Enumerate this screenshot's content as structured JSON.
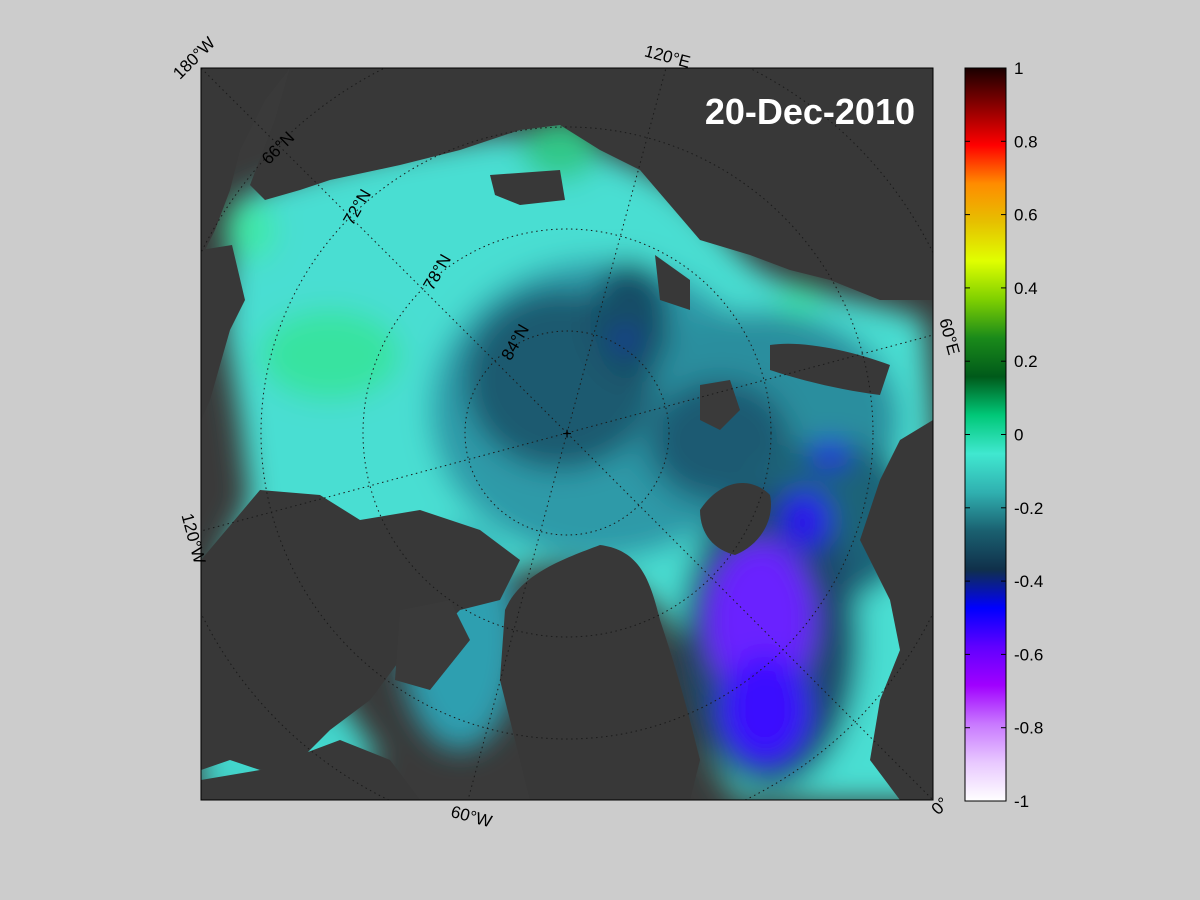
{
  "map": {
    "date_label": "20-Dec-2010",
    "projection": "north polar stereographic",
    "colors": {
      "land": "#3a3a3a",
      "land_outline_gray": "#7a7a7a",
      "background": "#cccccc",
      "graticule": "#1a1a1a"
    },
    "longitude_labels": [
      "180°W",
      "120°E",
      "60°E",
      "0°",
      "60°W",
      "120°W"
    ],
    "latitude_labels": [
      "66°N",
      "72°N",
      "78°N",
      "84°N"
    ],
    "pole_marker": "+"
  },
  "colorbar": {
    "min": -1,
    "max": 1,
    "tick_labels": [
      "1",
      "0.8",
      "0.6",
      "0.4",
      "0.2",
      "0",
      "-0.2",
      "-0.4",
      "-0.6",
      "-0.8",
      "-1"
    ],
    "colors_top_to_bottom": [
      "#1a0000",
      "#8b0000",
      "#ff0000",
      "#ff8c00",
      "#e6c000",
      "#e0ff00",
      "#7fd000",
      "#1a8a1a",
      "#005a1a",
      "#00c878",
      "#40e8d0",
      "#30b0b0",
      "#1a6070",
      "#10304a",
      "#0000ff",
      "#6000ff",
      "#a000ff",
      "#c878ff",
      "#e8c8ff",
      "#ffffff"
    ]
  }
}
